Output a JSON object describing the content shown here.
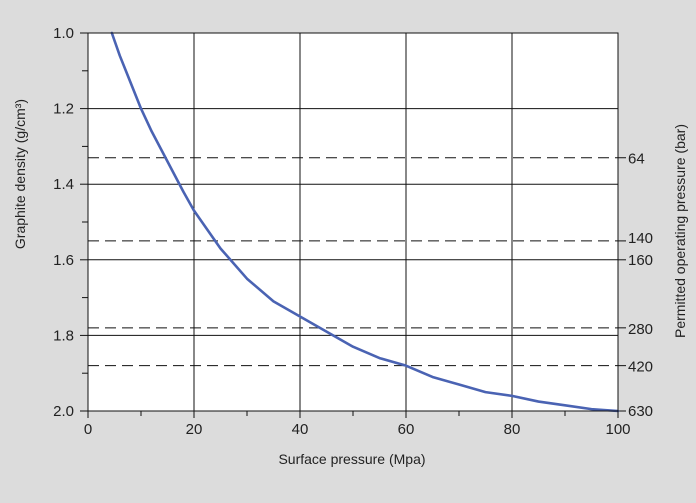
{
  "chart_data": {
    "type": "line",
    "xlabel": "Surface pressure (Mpa)",
    "ylabel": "Graphite density (g/cm³)",
    "y2label": "Permitted operating pressure (bar)",
    "xlim": [
      0,
      100
    ],
    "ylim": [
      1.0,
      2.0
    ],
    "y_inverted": true,
    "x_ticks": [
      0,
      20,
      40,
      60,
      80,
      100
    ],
    "x_tick_labels": [
      "0",
      "20",
      "40",
      "60",
      "80",
      "100"
    ],
    "y_ticks": [
      1.0,
      1.2,
      1.4,
      1.6,
      1.8,
      2.0
    ],
    "y_tick_labels": [
      "1.0",
      "1.2",
      "1.4",
      "1.6",
      "1.8",
      "2.0"
    ],
    "grid": true,
    "series": [
      {
        "color": "#4a63b3",
        "x": [
          4.5,
          6,
          8,
          10,
          12,
          15,
          18,
          20,
          25,
          30,
          35,
          40,
          45,
          50,
          55,
          60,
          65,
          70,
          75,
          80,
          85,
          90,
          95,
          100
        ],
        "y": [
          1.0,
          1.06,
          1.13,
          1.2,
          1.26,
          1.34,
          1.42,
          1.47,
          1.57,
          1.65,
          1.71,
          1.75,
          1.79,
          1.83,
          1.86,
          1.88,
          1.91,
          1.93,
          1.95,
          1.96,
          1.975,
          1.985,
          1.995,
          2.0
        ]
      }
    ],
    "reference_lines": [
      {
        "density": 1.33,
        "label": "64"
      },
      {
        "density": 1.55,
        "label": "140"
      },
      {
        "density": 1.6,
        "label": "160"
      },
      {
        "density": 1.78,
        "label": "280"
      },
      {
        "density": 1.88,
        "label": "420"
      },
      {
        "density": 2.0,
        "label": "630"
      }
    ]
  }
}
